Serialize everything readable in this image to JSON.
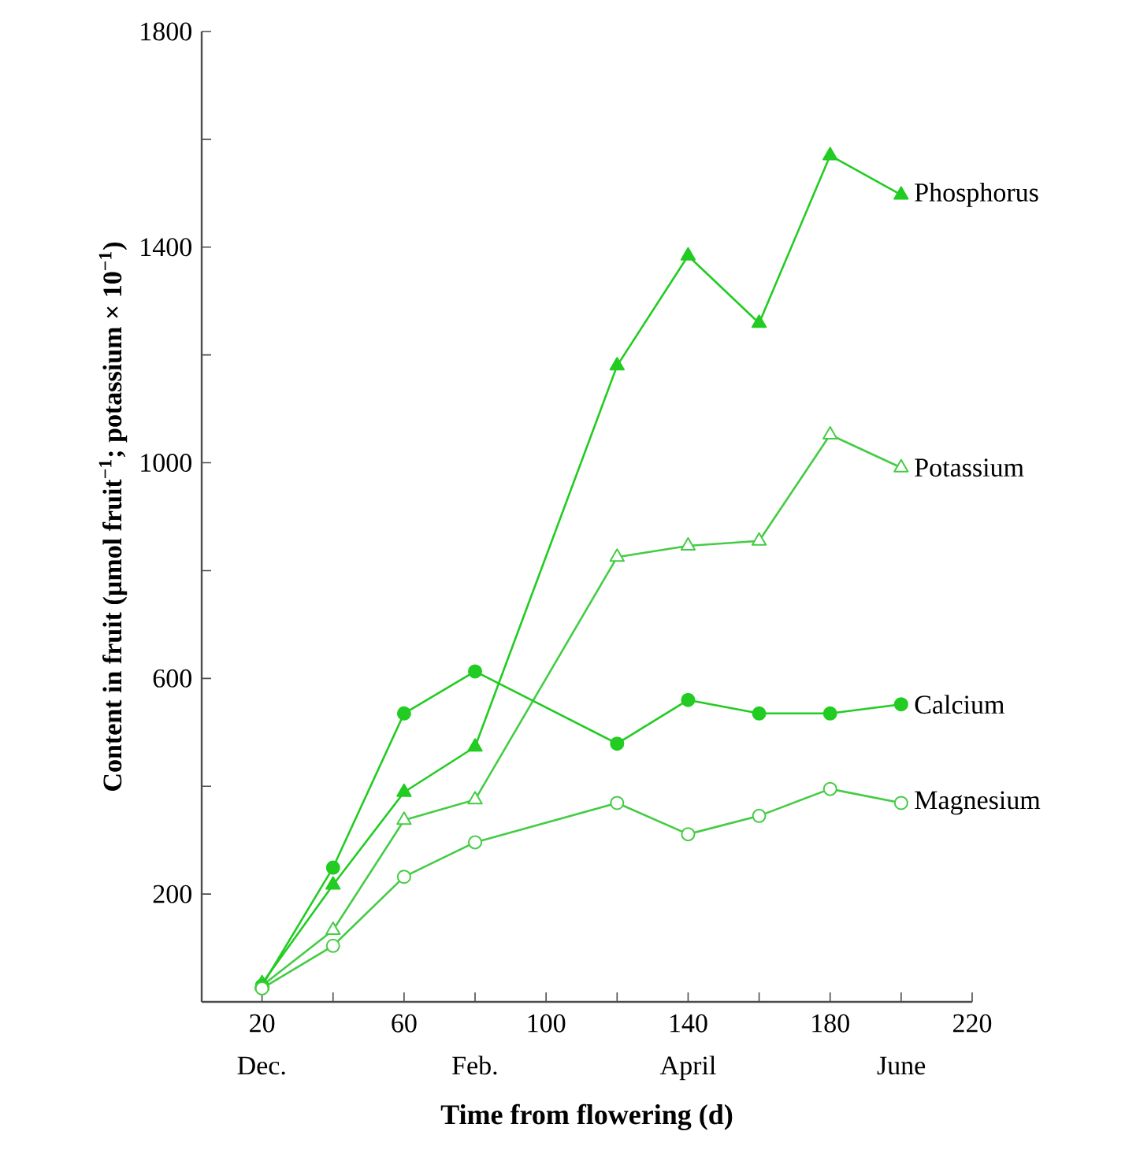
{
  "chart_data": {
    "type": "line",
    "xlabel": "Time from flowering (d)",
    "ylabel": "Content in fruit (µmol fruit$^{−1}$; potassium × 10$^{−1}$)",
    "x": [
      20,
      40,
      60,
      80,
      120,
      140,
      160,
      180,
      200
    ],
    "series": [
      {
        "name": "Phosphorus",
        "color": "#22cc22",
        "marker": "triangle",
        "values": [
          34,
          217,
          389,
          473,
          1180,
          1384,
          1259,
          1570,
          1497
        ]
      },
      {
        "name": "Potassium",
        "color": "#44cc44",
        "marker": "triangle",
        "values": [
          30,
          133,
          337,
          375,
          825,
          846,
          855,
          1052,
          991
        ]
      },
      {
        "name": "Calcium",
        "color": "#22cc22",
        "marker": "circle",
        "values": [
          30,
          249,
          535,
          613,
          479,
          560,
          535,
          535,
          552
        ]
      },
      {
        "name": "Magnesium",
        "color": "#44cc44",
        "marker": "circle",
        "values": [
          25,
          104,
          232,
          296,
          369,
          311,
          345,
          395,
          369
        ]
      }
    ],
    "xlim": [
      3,
      220
    ],
    "ylim": [
      0,
      1800
    ],
    "xticks": [
      {
        "value": 20,
        "label": "20"
      },
      {
        "value": 40,
        "label": null
      },
      {
        "value": 60,
        "label": "60"
      },
      {
        "value": 80,
        "label": null
      },
      {
        "value": 100,
        "label": "100"
      },
      {
        "value": 120,
        "label": null
      },
      {
        "value": 140,
        "label": "140"
      },
      {
        "value": 160,
        "label": null
      },
      {
        "value": 180,
        "label": "180"
      },
      {
        "value": 200,
        "label": null
      },
      {
        "value": 220,
        "label": "220"
      }
    ],
    "annotations": [
      "Dec.",
      "Feb.",
      "April",
      "June"
    ],
    "yticks": [
      {
        "value": 200,
        "label": "200"
      },
      {
        "value": 400,
        "label": null
      },
      {
        "value": 600,
        "label": "600"
      },
      {
        "value": 800,
        "label": null
      },
      {
        "value": 1000,
        "label": "1000"
      },
      {
        "value": 1200,
        "label": null
      },
      {
        "value": 1400,
        "label": "1400"
      },
      {
        "value": 1600,
        "label": null
      },
      {
        "value": 1800,
        "label": "1800"
      }
    ],
    "grid": false,
    "line_style": "solid"
  }
}
